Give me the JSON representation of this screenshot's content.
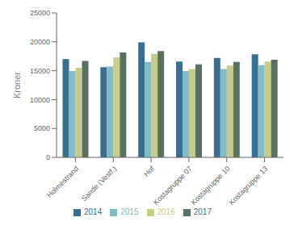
{
  "chart_data": {
    "type": "bar",
    "ylabel": "Kroner",
    "categories": [
      "Holmestrand",
      "Sande (Vestf.)",
      "Hof",
      "Kostagruppe 07",
      "Kostagruppe 10",
      "Kostagruppe 13"
    ],
    "series": [
      {
        "name": "2014",
        "color": "#3a6e8f",
        "values": [
          16999,
          15600,
          19900,
          16600,
          17200,
          17850
        ]
      },
      {
        "name": "2015",
        "color": "#82bcc8",
        "values": [
          14952,
          15700,
          16500,
          14950,
          15300,
          15950
        ]
      },
      {
        "name": "2016",
        "color": "#c8cc8a",
        "values": [
          15500,
          17300,
          17900,
          15300,
          15900,
          16600
        ]
      },
      {
        "name": "2017",
        "color": "#5a7060",
        "values": [
          16700,
          18150,
          18400,
          16100,
          16500,
          16900
        ]
      }
    ],
    "ylim": [
      0,
      25000
    ],
    "yticks": [
      0,
      5000,
      10000,
      15000,
      20000,
      25000
    ],
    "grid": false,
    "legend": "bottom"
  }
}
